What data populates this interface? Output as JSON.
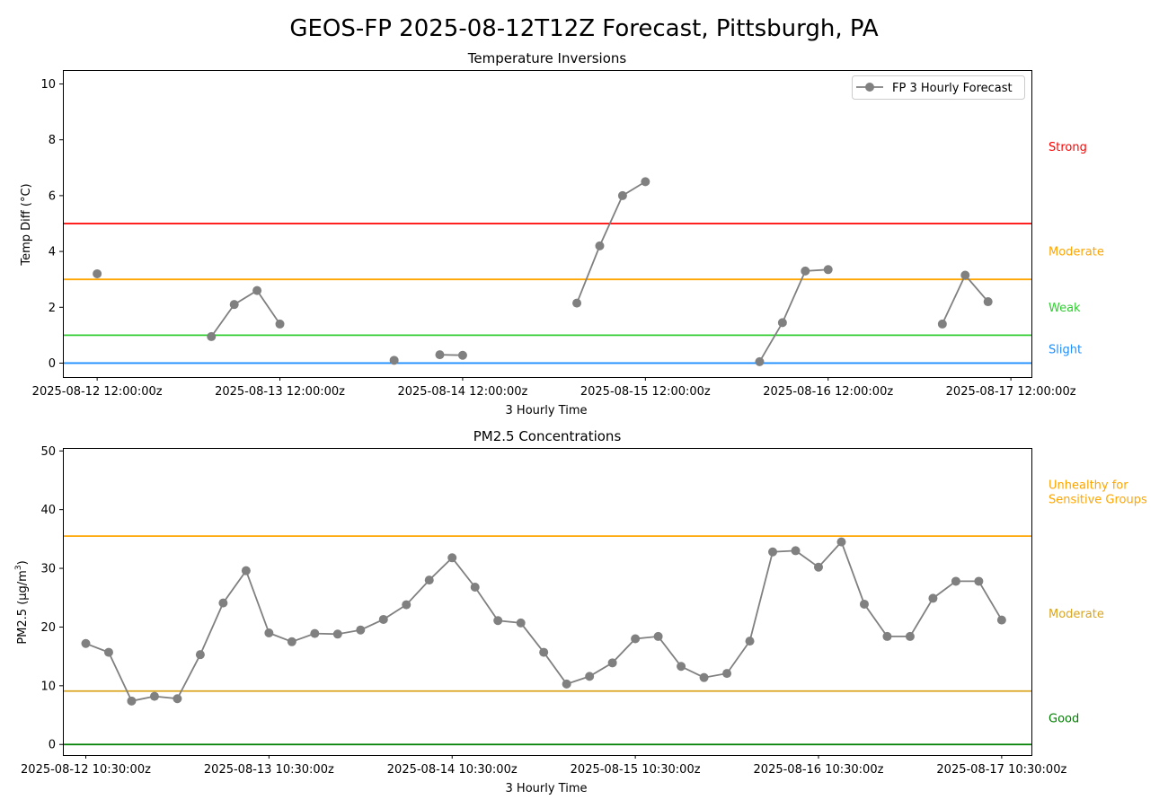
{
  "figure_title": "GEOS-FP 2025-08-12T12Z Forecast, Pittsburgh, PA",
  "chart_data": [
    {
      "type": "line",
      "title": "Temperature Inversions",
      "xlabel": "3 Hourly Time",
      "ylabel": "Temp Diff (°C)",
      "ylim": [
        -0.5,
        10.5
      ],
      "yticks": [
        0,
        2,
        4,
        6,
        8,
        10
      ],
      "x_start": "2025-08-12 12:00:00z",
      "x_step_hours": 3,
      "xlim_index": [
        -1.5,
        40.9
      ],
      "xtick_index": [
        0,
        8,
        16,
        24,
        32,
        40
      ],
      "xtick_labels": [
        "2025-08-12 12:00:00z",
        "2025-08-13 12:00:00z",
        "2025-08-14 12:00:00z",
        "2025-08-15 12:00:00z",
        "2025-08-16 12:00:00z",
        "2025-08-17 12:00:00z"
      ],
      "grid": false,
      "legend_position": "top-right",
      "series": [
        {
          "name": "FP 3 Hourly Forecast",
          "color": "#808080",
          "values": [
            3.2,
            null,
            null,
            null,
            null,
            0.95,
            2.1,
            2.6,
            1.4,
            null,
            null,
            null,
            null,
            0.1,
            null,
            0.3,
            0.28,
            null,
            null,
            null,
            null,
            2.15,
            4.2,
            6.0,
            6.5,
            null,
            null,
            null,
            null,
            0.05,
            1.45,
            3.3,
            3.35,
            null,
            null,
            null,
            null,
            1.4,
            3.15,
            2.2
          ]
        }
      ],
      "thresholds": [
        {
          "value": 0,
          "color": "#1f8fff"
        },
        {
          "value": 1,
          "color": "#32cd32"
        },
        {
          "value": 3,
          "color": "#ffa500"
        },
        {
          "value": 5,
          "color": "#ff0000"
        }
      ],
      "band_labels": [
        {
          "label": "Slight",
          "value": 0.5,
          "color": "#1f8fff"
        },
        {
          "label": "Weak",
          "value": 2.0,
          "color": "#32cd32"
        },
        {
          "label": "Moderate",
          "value": 4.0,
          "color": "#ffa500"
        },
        {
          "label": "Strong",
          "value": 7.75,
          "color": "#ff0000"
        }
      ]
    },
    {
      "type": "line",
      "title": "PM2.5 Concentrations",
      "xlabel": "3 Hourly Time",
      "ylabel": "PM2.5 (μg/m³)",
      "ylabel_parts": [
        "PM2.5 (μg/m",
        "3",
        ")"
      ],
      "ylim": [
        -1.8,
        50.5
      ],
      "yticks": [
        0,
        10,
        20,
        30,
        40,
        50
      ],
      "x_start": "2025-08-12 10:30:00z",
      "x_step_hours": 3,
      "xlim_index": [
        -1.0,
        41.3
      ],
      "xtick_index": [
        0,
        8,
        16,
        24,
        32,
        40
      ],
      "xtick_labels": [
        "2025-08-12 10:30:00z",
        "2025-08-13 10:30:00z",
        "2025-08-14 10:30:00z",
        "2025-08-15 10:30:00z",
        "2025-08-16 10:30:00z",
        "2025-08-17 10:30:00z"
      ],
      "grid": false,
      "series": [
        {
          "color": "#808080",
          "values": [
            17.2,
            15.7,
            7.4,
            8.2,
            7.8,
            15.3,
            24.1,
            29.6,
            19.0,
            17.5,
            18.9,
            18.8,
            19.5,
            21.3,
            23.8,
            28.0,
            31.8,
            26.8,
            21.1,
            20.7,
            15.7,
            10.3,
            11.6,
            13.9,
            18.0,
            18.4,
            13.3,
            11.4,
            12.1,
            17.6,
            32.8,
            33.0,
            30.2,
            34.5,
            23.9,
            18.4,
            18.4,
            24.9,
            27.8,
            27.8,
            21.2
          ]
        }
      ],
      "thresholds": [
        {
          "value": 0,
          "color": "#008000"
        },
        {
          "value": 9.1,
          "color": "#daa520"
        },
        {
          "value": 35.5,
          "color": "#ffa500"
        }
      ],
      "band_labels": [
        {
          "label": "Good",
          "lines": [
            "Good"
          ],
          "value": 4.5,
          "color": "#008000"
        },
        {
          "label": "Moderate",
          "lines": [
            "Moderate"
          ],
          "value": 22.3,
          "color": "#daa520"
        },
        {
          "label": "Unhealthy for Sensitive Groups",
          "lines": [
            "Unhealthy for",
            "Sensitive Groups"
          ],
          "value": 43.0,
          "color": "#ffa500"
        }
      ]
    }
  ]
}
